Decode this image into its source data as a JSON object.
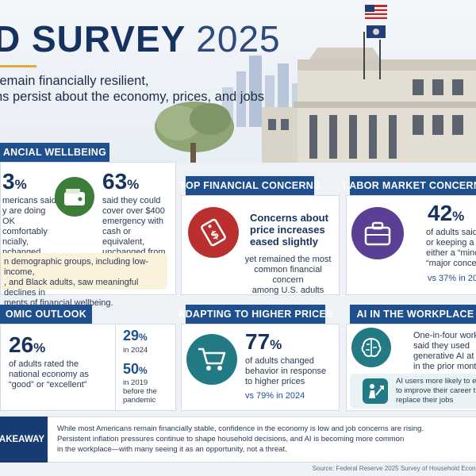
{
  "header": {
    "title_main": "D SURVEY",
    "title_year": "2025",
    "subtitle_line1": "remain financially resilient,",
    "subtitle_line2": "ns persist about the economy, prices, and jobs"
  },
  "wellbeing": {
    "heading": "ANCIAL WELLBEING",
    "stat1_value": "3",
    "stat1_unit": "%",
    "stat1_lines": [
      "mericans said",
      "y are doing OK",
      "comfortably",
      "ncially,",
      "nchanged from 2024"
    ],
    "stat2_value": "63",
    "stat2_unit": "%",
    "stat2_lines": [
      "said they could",
      "cover over $400",
      "emergency with",
      "cash or equivalent,",
      "unchanged from 2024"
    ],
    "note_lines": [
      "n demographic groups, including low-income,",
      ", and Black adults, saw meaningful declines in",
      "ments of financial wellbeing."
    ]
  },
  "concerns": {
    "heading": "TOP FINANCIAL CONCERNS",
    "headline_lines": [
      "Concerns about",
      "price increases",
      "eased slightly"
    ],
    "body_lines": [
      "yet remained the most",
      "common financial concern",
      "among U.S. adults"
    ]
  },
  "labor": {
    "heading": "LABOR MARKET CONCERNS",
    "value": "42",
    "unit": "%",
    "lines": [
      "of adults said",
      "or keeping a",
      "either a “mino",
      "“major conce"
    ],
    "comparison": "vs 37% in 20"
  },
  "outlook": {
    "heading": "OMIC OUTLOOK",
    "value": "26",
    "unit": "%",
    "lines": [
      "of adults rated the",
      "national economy as",
      "“good” or “excellent”"
    ],
    "cmp1_value": "29",
    "cmp1_unit": "%",
    "cmp1_label": "in 2024",
    "cmp2_value": "50",
    "cmp2_unit": "%",
    "cmp2_lines": [
      "in 2019",
      "before the",
      "pandemic"
    ]
  },
  "prices": {
    "heading": "ADAPTING TO HIGHER PRICES",
    "value": "77",
    "unit": "%",
    "lines": [
      "of adults changed",
      "behavior in response",
      "to higher prices"
    ],
    "comparison": "vs 79% in 2024"
  },
  "ai": {
    "heading": "AI IN THE WORKPLACE",
    "lines": [
      "One-in-four work",
      "said they used",
      "generative AI at w",
      "in the prior mont"
    ],
    "note_lines": [
      "AI users more likely to e",
      "to improve their career t",
      "replace their jobs"
    ]
  },
  "takeaway": {
    "label": "AKEAWAY",
    "line1": "While most Americans remain financially stable, confidence in the economy is low and job concerns are rising.",
    "line2": "Persistent inflation pressures continue to shape household decisions, and AI is becoming more common",
    "line3": "in the workplace—with many seeing it as an opportunity, not a threat."
  },
  "source": "Source: Federal Reserve 2025 Survey of Household Econo",
  "colors": {
    "navy": "#16325e",
    "header_blue": "#1f4f8c",
    "green": "#3d7d3a",
    "red": "#b9302f",
    "purple": "#5a3f94",
    "teal": "#227a85",
    "gold": "#e2a93b"
  },
  "icons": [
    "wallet-icon",
    "price-tag-icon",
    "briefcase-icon",
    "shopping-cart-icon",
    "brain-icon",
    "growth-person-icon",
    "us-flag-icon",
    "fed-flag-icon"
  ]
}
